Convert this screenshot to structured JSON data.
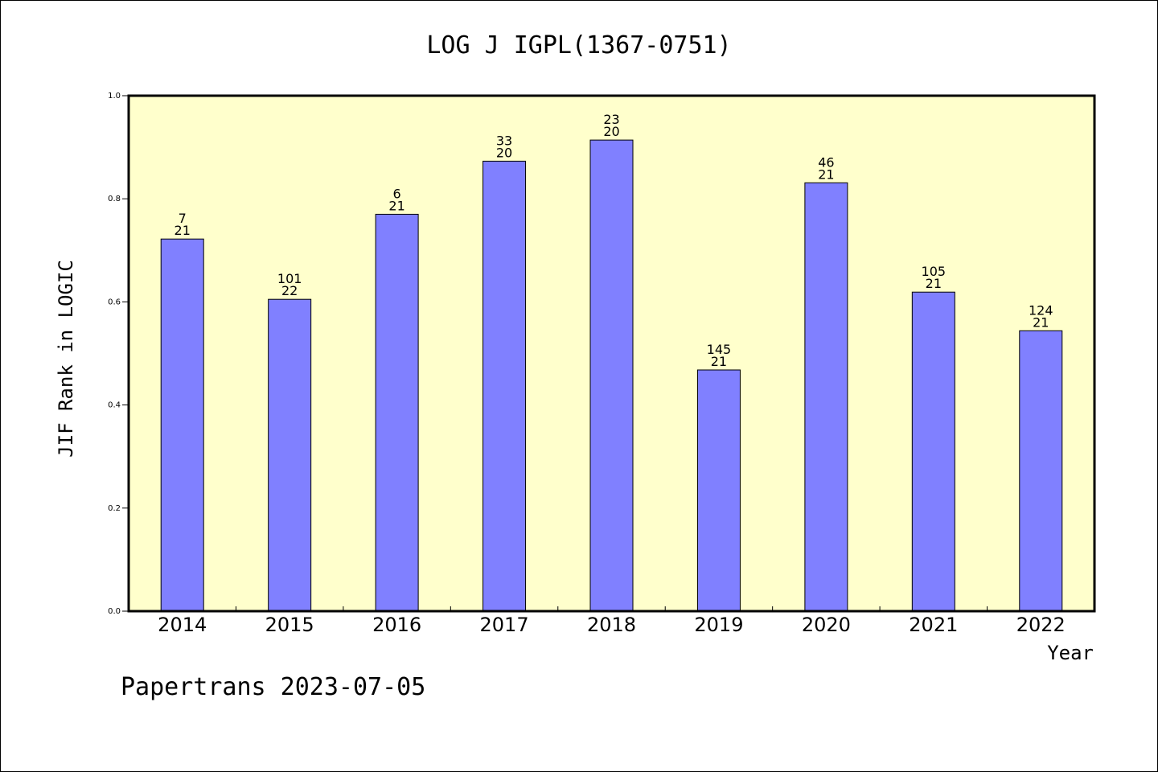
{
  "chart_data": {
    "type": "bar",
    "title": "LOG J IGPL(1367-0751)",
    "xlabel": "Year",
    "ylabel": "JIF Rank in LOGIC",
    "ylim": [
      0,
      1.0
    ],
    "yticks": [
      "0.0",
      "0.2",
      "0.4",
      "0.6",
      "0.8",
      "1.0"
    ],
    "ytick_values": [
      0,
      0.2,
      0.4,
      0.6,
      0.8,
      1.0
    ],
    "grid": false,
    "categories": [
      "2014",
      "2015",
      "2016",
      "2017",
      "2018",
      "2019",
      "2020",
      "2021",
      "2022"
    ],
    "values": [
      0.722,
      0.605,
      0.77,
      0.873,
      0.914,
      0.468,
      0.831,
      0.619,
      0.544
    ],
    "labels_top": [
      "7",
      "101",
      "6",
      "33",
      "23",
      "145",
      "46",
      "105",
      "124"
    ],
    "labels_bottom": [
      "21",
      "22",
      "21",
      "20",
      "20",
      "21",
      "21",
      "21",
      "21"
    ],
    "colors": {
      "bar": "#8080ff",
      "plot_bg": "#ffffcc",
      "bar_edge": "#000000"
    }
  },
  "footer": "Papertrans 2023-07-05"
}
